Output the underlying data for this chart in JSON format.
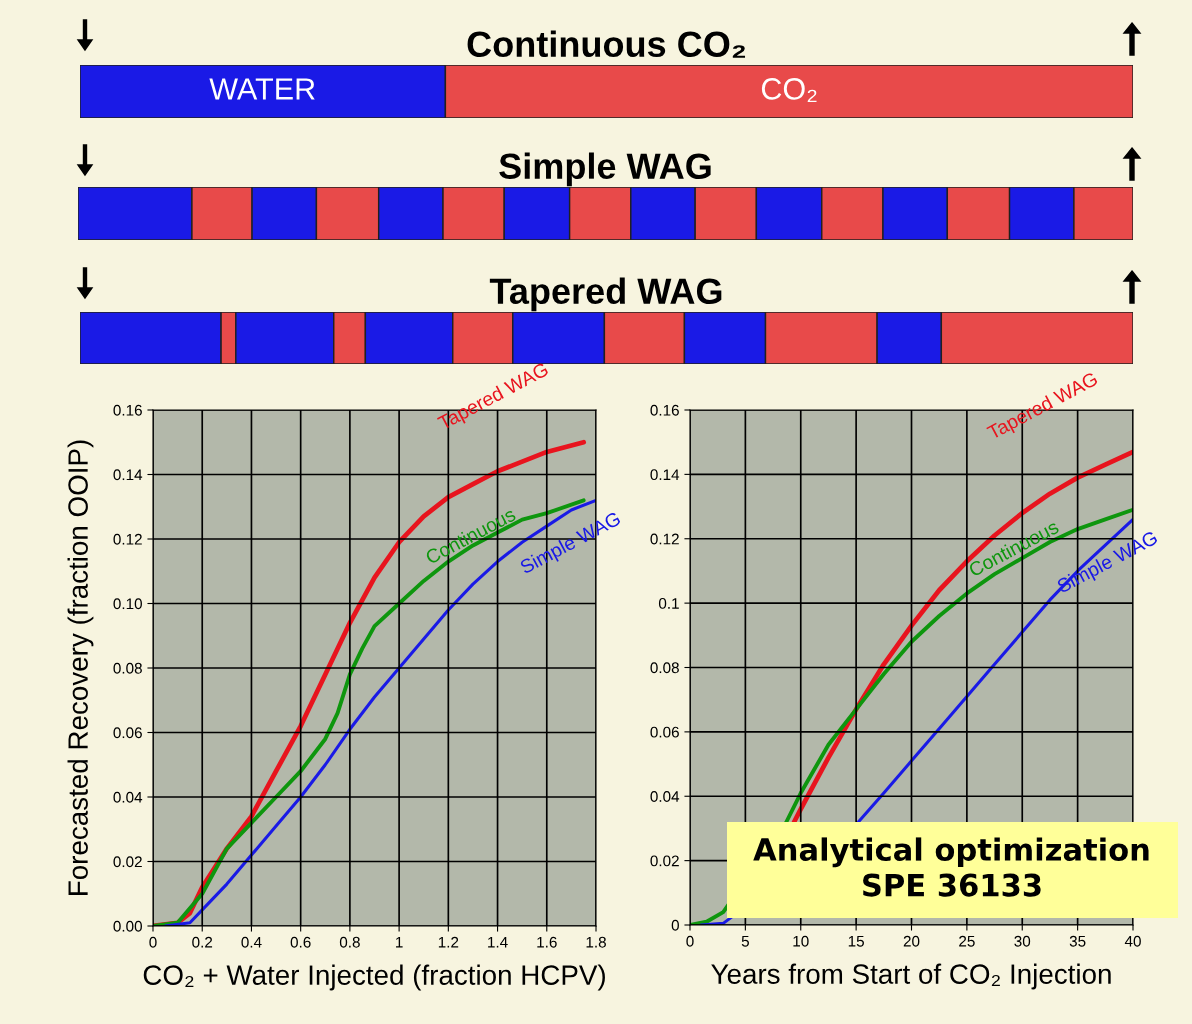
{
  "chart_data": [
    {
      "type": "other",
      "title": "Continuous CO₂",
      "annotations": [
        "WATER",
        "CO₂"
      ]
    },
    {
      "type": "other",
      "title": "Simple WAG"
    },
    {
      "type": "other",
      "title": "Tapered WAG"
    },
    {
      "type": "line",
      "xlabel": "CO₂ + Water Injected (fraction HCPV)",
      "ylabel": "Forecasted Recovery (fraction OOIP)",
      "xlim": [
        0,
        1.8
      ],
      "xticks": [
        0,
        0.2,
        0.4,
        0.6,
        0.8,
        1,
        1.2,
        1.4,
        1.6,
        1.8
      ],
      "ylim": [
        0,
        0.16
      ],
      "yticks": [
        {
          "value": 0,
          "label": "0.00"
        },
        {
          "value": 0.02,
          "label": "0.02"
        },
        {
          "value": 0.04,
          "label": "0.04"
        },
        {
          "value": 0.06,
          "label": "0.06"
        },
        {
          "value": 0.08,
          "label": "0.08"
        },
        {
          "value": 0.1,
          "label": "0.10"
        },
        {
          "value": 0.12,
          "label": "0.12"
        },
        {
          "value": 0.14,
          "label": "0.14"
        },
        {
          "value": 0.16,
          "label": "0.16"
        }
      ],
      "grid": true,
      "series": [
        {
          "name": "Tapered WAG",
          "color": "#e8141e",
          "x": [
            0,
            0.1,
            0.15,
            0.2,
            0.25,
            0.3,
            0.4,
            0.5,
            0.6,
            0.7,
            0.8,
            0.9,
            1.0,
            1.1,
            1.2,
            1.3,
            1.4,
            1.5,
            1.6,
            1.75
          ],
          "values": [
            0,
            0.001,
            0.004,
            0.012,
            0.018,
            0.024,
            0.034,
            0.048,
            0.062,
            0.078,
            0.094,
            0.108,
            0.119,
            0.127,
            0.133,
            0.137,
            0.141,
            0.144,
            0.147,
            0.15
          ]
        },
        {
          "name": "Continuous",
          "color": "#0e960e",
          "x": [
            0,
            0.1,
            0.2,
            0.3,
            0.4,
            0.5,
            0.6,
            0.7,
            0.75,
            0.8,
            0.85,
            0.9,
            1.0,
            1.1,
            1.2,
            1.3,
            1.4,
            1.5,
            1.6,
            1.75
          ],
          "values": [
            0,
            0.001,
            0.01,
            0.024,
            0.032,
            0.04,
            0.048,
            0.058,
            0.066,
            0.078,
            0.086,
            0.093,
            0.1,
            0.107,
            0.113,
            0.118,
            0.122,
            0.126,
            0.128,
            0.132
          ]
        },
        {
          "name": "Simple WAG",
          "color": "#1a1ae6",
          "x": [
            0.05,
            0.15,
            0.2,
            0.3,
            0.4,
            0.5,
            0.6,
            0.7,
            0.8,
            0.9,
            1.0,
            1.1,
            1.2,
            1.3,
            1.4,
            1.5,
            1.6,
            1.7,
            1.8
          ],
          "values": [
            0,
            0.001,
            0.005,
            0.013,
            0.022,
            0.031,
            0.04,
            0.05,
            0.061,
            0.071,
            0.08,
            0.089,
            0.098,
            0.106,
            0.113,
            0.119,
            0.124,
            0.129,
            0.132
          ]
        }
      ]
    },
    {
      "type": "line",
      "xlabel": "Years from Start of CO₂ Injection",
      "xlim": [
        0,
        40
      ],
      "xticks": [
        0,
        5,
        10,
        15,
        20,
        25,
        30,
        35,
        40
      ],
      "ylim": [
        0,
        0.16
      ],
      "yticks": [
        0,
        0.02,
        0.04,
        0.06,
        0.08,
        0.1,
        0.12,
        0.14,
        0.16
      ],
      "grid": true,
      "annotations": [
        "Analytical optimization\nSPE 36133"
      ],
      "series": [
        {
          "name": "Tapered WAG",
          "color": "#e8141e",
          "x": [
            9.4,
            10,
            12.5,
            15,
            17.5,
            20,
            22.5,
            25,
            27.5,
            30,
            32.5,
            35,
            37.5,
            40
          ],
          "values": [
            0.032,
            0.036,
            0.052,
            0.067,
            0.081,
            0.093,
            0.104,
            0.113,
            0.121,
            0.128,
            0.134,
            0.139,
            0.143,
            0.147
          ]
        },
        {
          "name": "Continuous",
          "color": "#0e960e",
          "x": [
            0,
            1.5,
            3,
            8.7,
            10,
            12.5,
            15,
            17.5,
            20,
            22.5,
            25,
            27.5,
            30,
            32.5,
            35,
            37.5,
            40
          ],
          "values": [
            0,
            0.001,
            0.004,
            0.032,
            0.041,
            0.056,
            0.067,
            0.078,
            0.088,
            0.096,
            0.103,
            0.109,
            0.114,
            0.119,
            0.123,
            0.126,
            0.129
          ]
        },
        {
          "name": "Simple WAG",
          "color": "#1a1ae6",
          "x": [
            1,
            3,
            15.2,
            17.5,
            20,
            22.5,
            25,
            27.5,
            30,
            32.5,
            35,
            37.5,
            40
          ],
          "values": [
            0,
            0.0005,
            0.032,
            0.041,
            0.051,
            0.061,
            0.071,
            0.081,
            0.091,
            0.101,
            0.11,
            0.118,
            0.126
          ]
        }
      ]
    }
  ]
}
